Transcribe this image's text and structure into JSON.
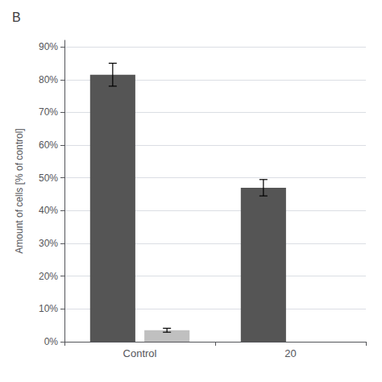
{
  "chart_data": {
    "type": "bar",
    "title": "B",
    "ylabel": "Amount of cells [% of control]",
    "categories": [
      "Control",
      "20"
    ],
    "series": [
      {
        "color": "#555555",
        "values": [
          81.5,
          47.0
        ],
        "errors": [
          3.5,
          2.5
        ]
      },
      {
        "color": "#c0c0c0",
        "values": [
          3.5,
          null
        ],
        "errors": [
          0.6,
          null
        ]
      }
    ],
    "ylim": [
      0,
      92
    ],
    "yticks": [
      {
        "value": 0,
        "label": "0%"
      },
      {
        "value": 10,
        "label": "10%"
      },
      {
        "value": 20,
        "label": "20%"
      },
      {
        "value": 30,
        "label": "30%"
      },
      {
        "value": 40,
        "label": "40%"
      },
      {
        "value": 50,
        "label": "50%"
      },
      {
        "value": 60,
        "label": "60%"
      },
      {
        "value": 70,
        "label": "70%"
      },
      {
        "value": 80,
        "label": "80%"
      },
      {
        "value": 90,
        "label": "90%"
      }
    ],
    "grid": true
  }
}
